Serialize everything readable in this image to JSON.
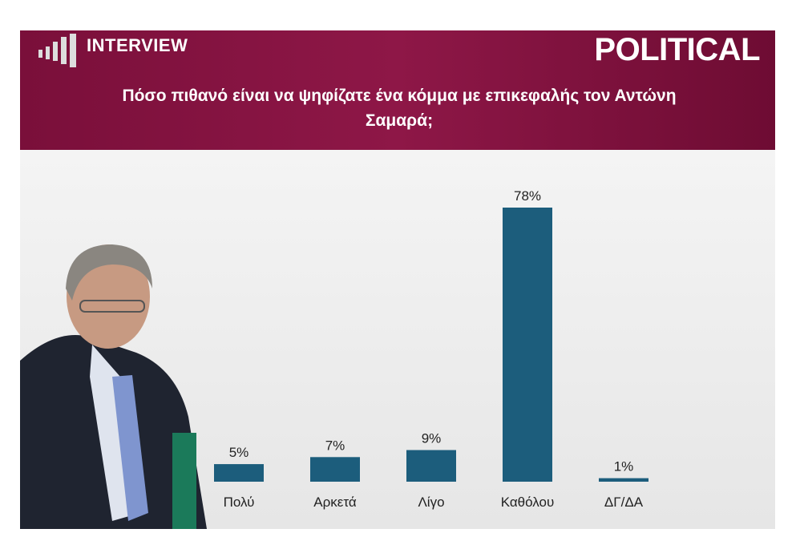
{
  "header": {
    "brand": "INTERVIEW",
    "channel": "POLITICAL"
  },
  "chart_data": {
    "type": "bar",
    "title": "Πόσο πιθανό είναι να ψηφίζατε ένα κόμμα με επικεφαλής τον Αντώνη Σαμαρά;",
    "categories": [
      "Πολύ",
      "Αρκετά",
      "Λίγο",
      "Καθόλου",
      "ΔΓ/ΔΑ"
    ],
    "values": [
      5,
      7,
      9,
      78,
      1
    ],
    "value_labels": [
      "5%",
      "7%",
      "9%",
      "78%",
      "1%"
    ],
    "color": "#1c5d7c"
  }
}
